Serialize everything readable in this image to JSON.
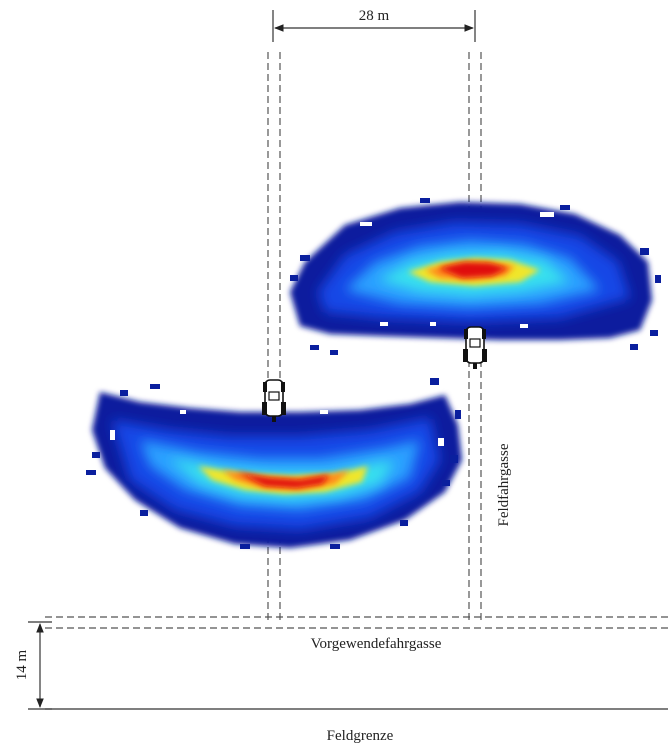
{
  "labels": {
    "width_dimension": "28 m",
    "depth_dimension": "14 m",
    "field_tramline": "Feldfahrgasse",
    "headland_tramline": "Vorgewendefahrgasse",
    "field_boundary": "Feldgrenze"
  },
  "colors": {
    "dark_blue": "#0a1f9e",
    "blue": "#1646e6",
    "light_blue": "#2aa0ff",
    "cyan": "#38e0ee",
    "yellow": "#f0e62a",
    "orange": "#ff8c1a",
    "red": "#e01010"
  }
}
